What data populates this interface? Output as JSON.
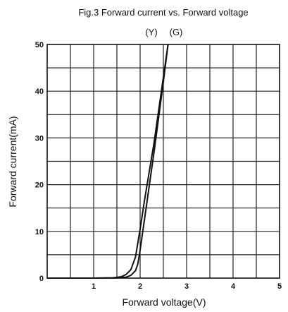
{
  "chart_data": {
    "type": "line",
    "title": "Fig.3 Forward current vs. Forward voltage",
    "xlabel": "Forward voltage(V)",
    "ylabel": "Forward current(mA)",
    "xlim": [
      0,
      5
    ],
    "ylim": [
      0,
      50
    ],
    "x_ticks": [
      {
        "value": 0,
        "label": ""
      },
      {
        "value": 1,
        "label": "1"
      },
      {
        "value": 2,
        "label": "2"
      },
      {
        "value": 3,
        "label": "3"
      },
      {
        "value": 4,
        "label": "4"
      },
      {
        "value": 5,
        "label": "5"
      }
    ],
    "y_ticks": [
      {
        "value": 0,
        "label": "0"
      },
      {
        "value": 10,
        "label": "10"
      },
      {
        "value": 20,
        "label": "20"
      },
      {
        "value": 30,
        "label": "30"
      },
      {
        "value": 40,
        "label": "40"
      },
      {
        "value": 50,
        "label": "50"
      }
    ],
    "x_grid_step": 0.5,
    "y_grid_step": 5,
    "grid": true,
    "legend": "top-center",
    "series": [
      {
        "name": "(Y)",
        "color": "#111111",
        "points": [
          [
            0,
            0
          ],
          [
            1.0,
            0
          ],
          [
            1.4,
            0.05
          ],
          [
            1.6,
            0.3
          ],
          [
            1.7,
            0.8
          ],
          [
            1.8,
            1.8
          ],
          [
            1.9,
            4.5
          ],
          [
            2.0,
            10.5
          ],
          [
            2.1,
            17
          ],
          [
            2.2,
            23
          ],
          [
            2.3,
            29
          ],
          [
            2.4,
            36
          ],
          [
            2.5,
            43
          ],
          [
            2.6,
            50
          ]
        ]
      },
      {
        "name": "(G)",
        "color": "#111111",
        "points": [
          [
            0,
            0
          ],
          [
            1.0,
            0
          ],
          [
            1.5,
            0.05
          ],
          [
            1.7,
            0.2
          ],
          [
            1.8,
            0.6
          ],
          [
            1.9,
            1.6
          ],
          [
            1.95,
            3
          ],
          [
            2.0,
            6
          ],
          [
            2.1,
            13
          ],
          [
            2.2,
            20
          ],
          [
            2.3,
            27
          ],
          [
            2.4,
            34.5
          ],
          [
            2.5,
            42
          ],
          [
            2.6,
            50
          ]
        ]
      }
    ]
  }
}
